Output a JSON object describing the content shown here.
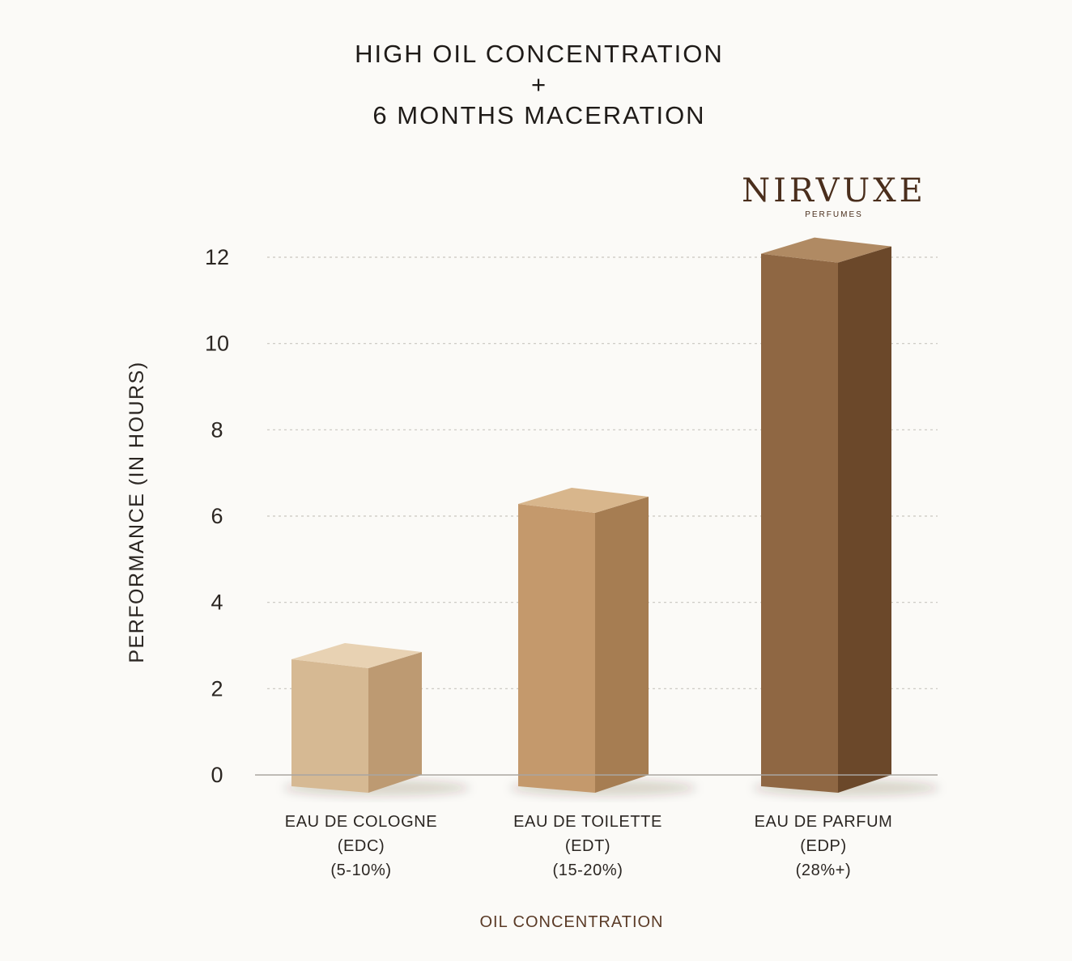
{
  "header": {
    "title_line1": "HIGH OIL CONCENTRATION",
    "title_plus": "+",
    "title_line2": "6 MONTHS MACERATION"
  },
  "logo": {
    "name": "NIRVUXE",
    "subtitle": "PERFUMES",
    "color": "#4a2e1c"
  },
  "chart_data": {
    "type": "bar",
    "categories": [
      [
        "EAU DE COLOGNE",
        "(EDC)",
        "(5-10%)"
      ],
      [
        "EAU DE TOILETTE",
        "(EDT)",
        "(15-20%)"
      ],
      [
        "EAU DE PARFUM",
        "(EDP)",
        "(28%+)"
      ]
    ],
    "values": [
      2.7,
      6.3,
      12.1
    ],
    "xlabel": "OIL CONCENTRATION",
    "ylabel": "PERFORMANCE (IN HOURS)",
    "ylim": [
      0,
      12
    ],
    "yticks": [
      0,
      2,
      4,
      6,
      8,
      10,
      12
    ],
    "grid": true,
    "bar_style": "3d-box",
    "colors": [
      {
        "front": "#d6b993",
        "side": "#bd9a72",
        "top": "#e8d2b3"
      },
      {
        "front": "#c4996c",
        "side": "#a67d52",
        "top": "#d8b68c"
      },
      {
        "front": "#8f6743",
        "side": "#6b482a",
        "top": "#b08a63"
      }
    ],
    "xlabel_color": "#5a3a26"
  }
}
